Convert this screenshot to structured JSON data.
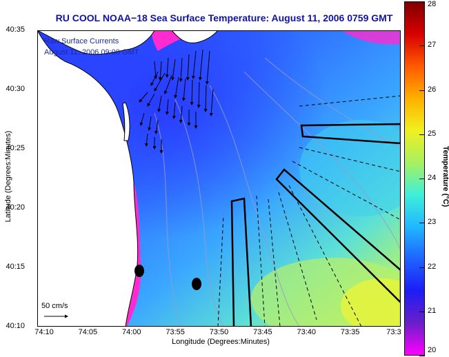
{
  "title": "RU COOL  NOAA−18  Sea Surface Temperature:  August 11, 2006 0759 GMT",
  "legend": {
    "line1": "Raw Surface Currents",
    "line2": "August 11, 2006 09:00 GMT"
  },
  "axes": {
    "xlabel": "Longitude (Degrees:Minutes)",
    "ylabel": "Latitude (Degrees:Minutes)",
    "xticks": [
      "74:10",
      "74:05",
      "74:00",
      "73:55",
      "73:50",
      "73:45",
      "73:40",
      "73:35",
      "73:3"
    ],
    "yticks": [
      "40:35",
      "40:30",
      "40:25",
      "40:20",
      "40:15",
      "40:10"
    ]
  },
  "colorbar": {
    "label": "Temperature (°C)",
    "ticks": [
      "28",
      "27",
      "26",
      "25",
      "24",
      "23",
      "22",
      "21",
      "20"
    ],
    "min": 20,
    "max": 28,
    "colors": [
      "#ff00ff",
      "#6a1fc8",
      "#1d1df5",
      "#1e64ff",
      "#20b8ff",
      "#3ff0d8",
      "#a8f060",
      "#f0f020",
      "#ffb000",
      "#ff5a00",
      "#d80000",
      "#800000"
    ]
  },
  "scale": {
    "label": "50 cm/s"
  },
  "map": {
    "water_colors": {
      "cold_coast": "#ff2bd0",
      "cold": "#2a3cff",
      "mid": "#2f8dff",
      "warm": "#48d6e8",
      "warmer": "#9ff08a",
      "warmest": "#e8f53a"
    },
    "land_color": "#ffffff"
  }
}
